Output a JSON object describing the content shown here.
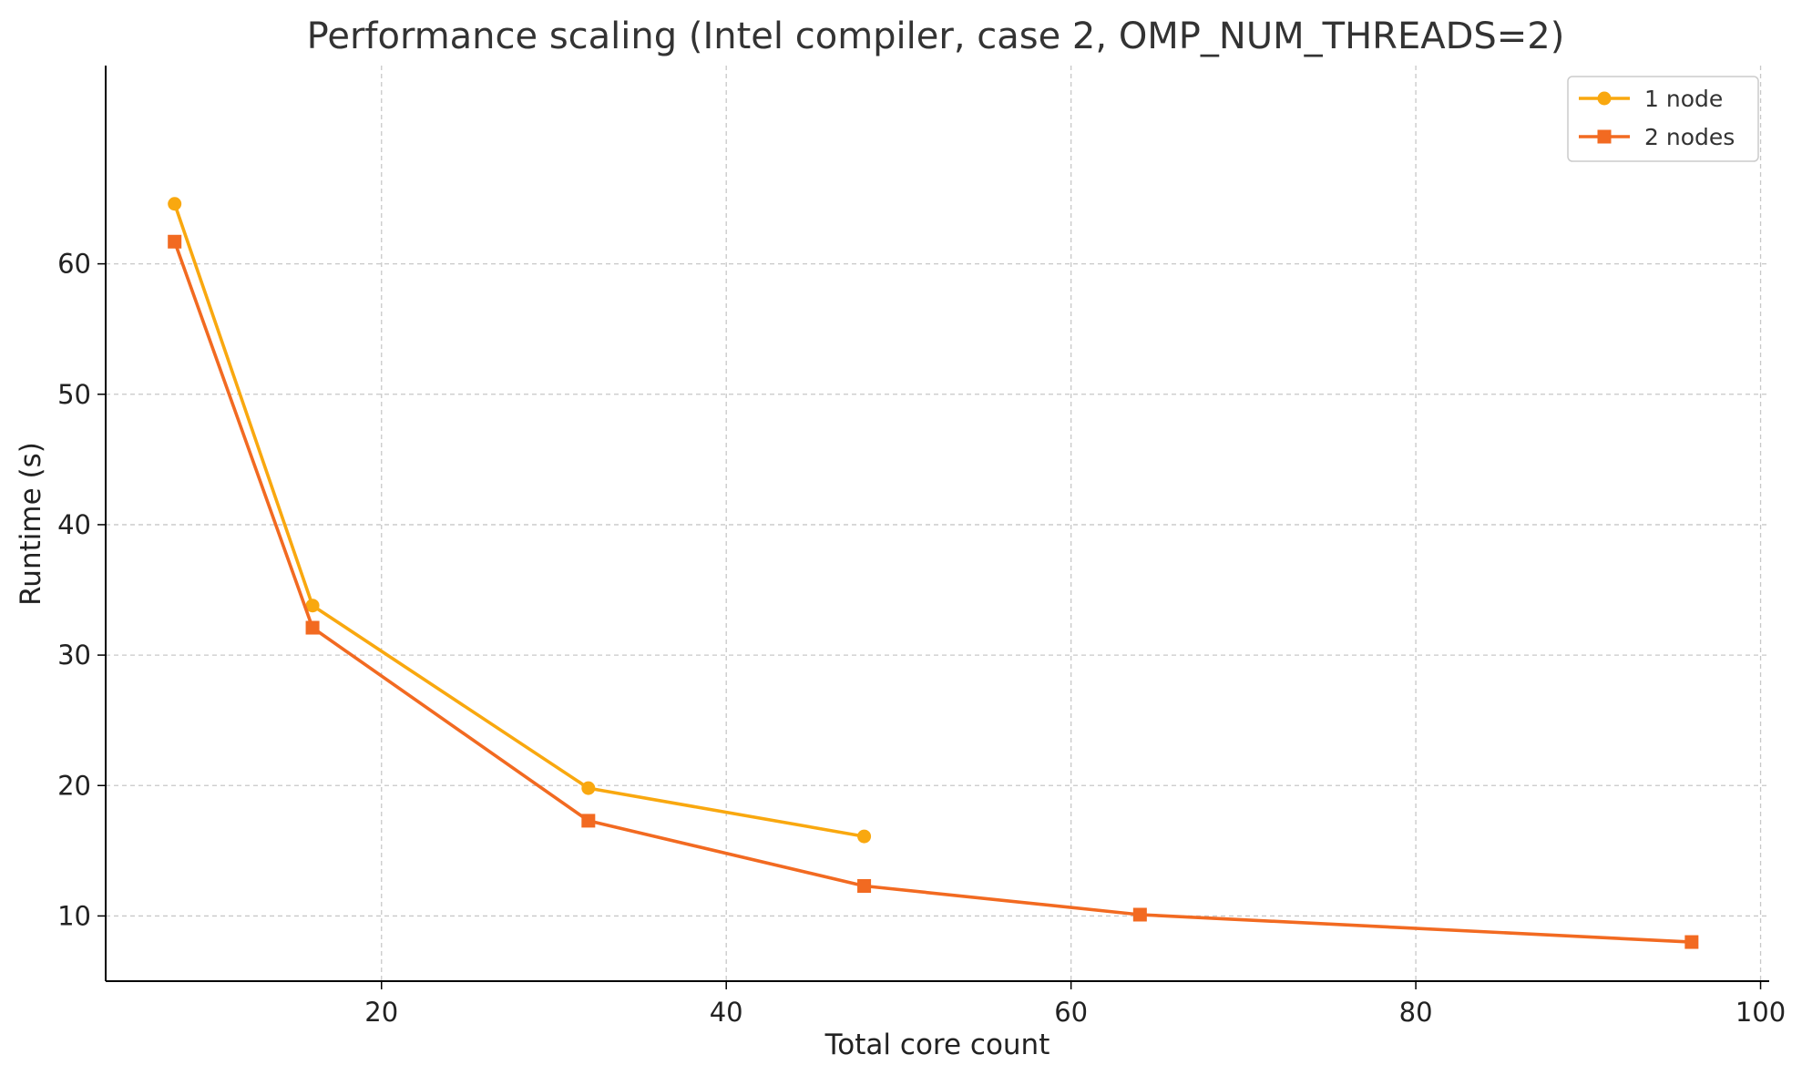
{
  "chart_data": {
    "type": "line",
    "title": "Performance scaling (Intel compiler, case 2, OMP_NUM_THREADS=2)",
    "xlabel": "Total core count",
    "ylabel": "Runtime (s)",
    "xlim": [
      4,
      100.5
    ],
    "ylim": [
      5,
      75.2
    ],
    "x_ticks": [
      20,
      40,
      60,
      80,
      100
    ],
    "y_ticks": [
      10,
      20,
      30,
      40,
      50,
      60
    ],
    "grid": true,
    "legend_position": "top-right",
    "series": [
      {
        "name": "1 node",
        "color": "#F9A80F",
        "marker": "circle",
        "x": [
          8,
          16,
          32,
          48
        ],
        "y": [
          64.6,
          33.8,
          19.8,
          16.1
        ]
      },
      {
        "name": "2 nodes",
        "color": "#F26A21",
        "marker": "square",
        "x": [
          8,
          16,
          32,
          48,
          64,
          96
        ],
        "y": [
          61.7,
          32.1,
          17.3,
          12.3,
          10.1,
          8.0
        ]
      }
    ]
  }
}
